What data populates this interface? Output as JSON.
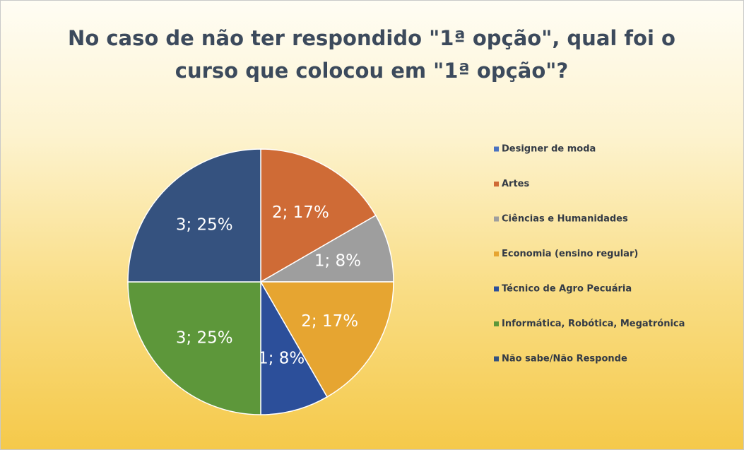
{
  "chart_data": {
    "type": "pie",
    "title": "No caso de não ter respondido \"1ª opção\", qual foi o curso que colocou em \"1ª opção\"?",
    "categories": [
      "Designer de moda",
      "Artes",
      "Ciências e Humanidades",
      "Economia (ensino regular)",
      "Técnico de Agro Pecuária",
      "Informática, Robótica, Megatrónica",
      "Não sabe/Não Responde"
    ],
    "values": [
      0,
      2,
      1,
      2,
      1,
      3,
      3
    ],
    "value_labels": [
      null,
      "2; 17%",
      "1; 8%",
      "2; 17%",
      "1; 8%",
      "3; 25%",
      "3; 25%"
    ],
    "colors": [
      "#4a72c0",
      "#cf6b36",
      "#9e9e9e",
      "#e6a531",
      "#2c4f9a",
      "#5d973a",
      "#35527f"
    ],
    "legend": "right"
  }
}
